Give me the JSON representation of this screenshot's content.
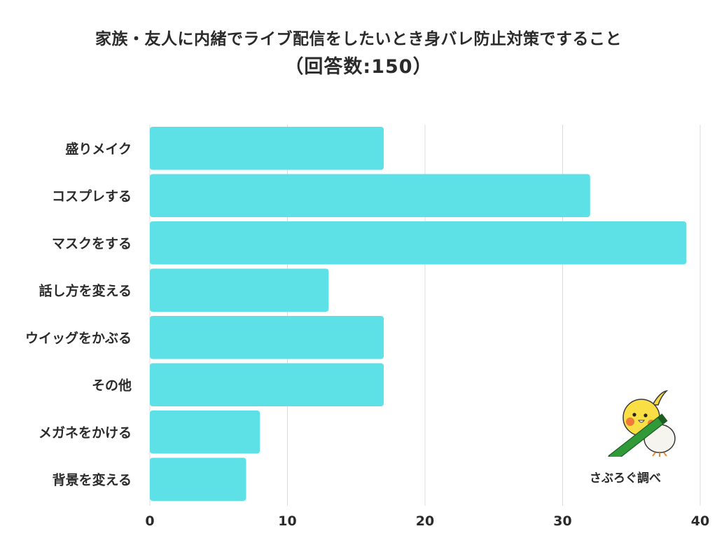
{
  "chart_data": {
    "type": "bar",
    "orientation": "horizontal",
    "title": "家族・友人に内緒でライブ配信をしたいとき身バレ防止対策ですること",
    "subtitle": "（回答数:150）",
    "categories": [
      "盛りメイク",
      "コスプレする",
      "マスクをする",
      "話し方を変える",
      "ウイッグをかぶる",
      "その他",
      "メガネをかける",
      "背景を変える"
    ],
    "values": [
      17,
      32,
      39,
      13,
      17,
      17,
      8,
      7
    ],
    "xlim": [
      0,
      40
    ],
    "xticks": [
      "0",
      "10",
      "20",
      "30",
      "40"
    ],
    "grid": true,
    "bar_color": "#5ee1e6",
    "grid_color": "#dcdcdc"
  },
  "credit": "さぶろぐ調べ",
  "mascot": {
    "icon": "cockatiel-with-pencil"
  }
}
